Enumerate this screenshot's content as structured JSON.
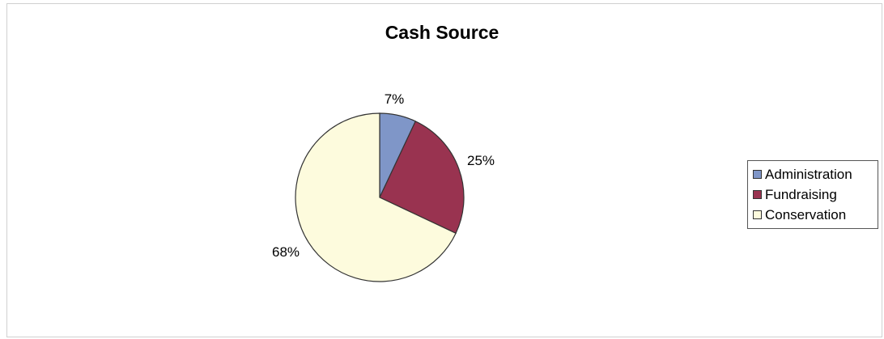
{
  "chart_data": {
    "type": "pie",
    "title": "Cash Source",
    "categories": [
      "Administration",
      "Fundraising",
      "Conservation"
    ],
    "values": [
      7,
      25,
      68
    ],
    "value_labels": [
      "7%",
      "25%",
      "68%"
    ],
    "colors": [
      "#7f96c8",
      "#993350",
      "#fdfbdd"
    ],
    "legend_placement": "right"
  }
}
